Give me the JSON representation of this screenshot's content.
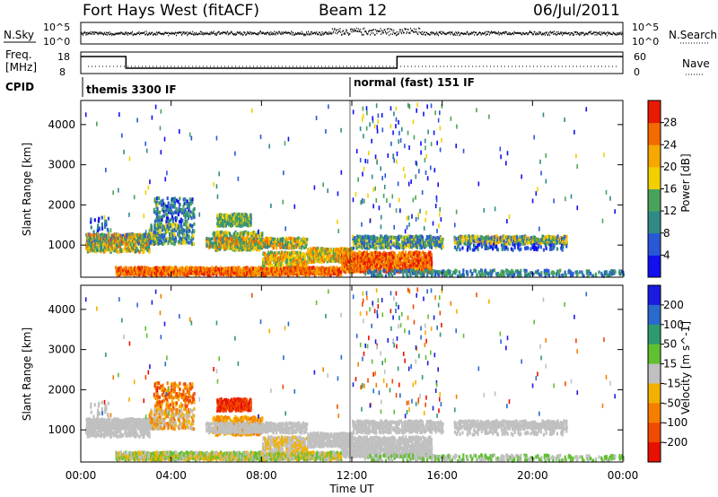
{
  "header": {
    "title": "Fort Hays West (fitACF)",
    "beam": "Beam 12",
    "date": "06/Jul/2011"
  },
  "left_labels": {
    "nsky": "N.Sky",
    "freq": "Freq.",
    "mhz": "[MHz]",
    "cpid": "CPID"
  },
  "right_labels": {
    "nsearch": "N.Search",
    "nave": "Nave"
  },
  "nsky_ticks": [
    "10^5",
    "10^0"
  ],
  "nsearch_ticks": [
    "10^5",
    "10^0"
  ],
  "freq_ticks": [
    "18",
    "8"
  ],
  "nave_ticks": [
    "60",
    "0"
  ],
  "cpid": [
    {
      "label": "themis 3300 IF",
      "start_hour": 0
    },
    {
      "label": "normal (fast) 151 IF",
      "start_hour": 12
    }
  ],
  "colors": {
    "power": [
      "#1010f0",
      "#2858d8",
      "#2f8a86",
      "#4aa35a",
      "#f2d000",
      "#f6a800",
      "#f36a00",
      "#e81a00"
    ],
    "velocity": [
      "#1a1ae0",
      "#2a6acf",
      "#2e9a70",
      "#60c030",
      "#c0c0c0",
      "#f2b100",
      "#f57e00",
      "#f04a00",
      "#e81000"
    ]
  },
  "chart_data": [
    {
      "type": "heatmap",
      "name_panel": "power",
      "ylabel": "Slant Range [km]",
      "xlabel": "",
      "yticks": [
        "1000",
        "2000",
        "3000",
        "4000"
      ],
      "ylim": [
        200,
        4600
      ],
      "xlim": [
        0,
        24
      ],
      "colorbar_label": "Power [dB]",
      "colorbar_ticks": [
        "4",
        "8",
        "12",
        "16",
        "20",
        "24",
        "28"
      ]
    },
    {
      "type": "heatmap",
      "name_panel": "velocity",
      "ylabel": "Slant Range [km]",
      "xlabel": "Time UT",
      "xticks": [
        "00:00",
        "04:00",
        "08:00",
        "12:00",
        "16:00",
        "20:00",
        "00:00"
      ],
      "yticks": [
        "1000",
        "2000",
        "3000",
        "4000"
      ],
      "ylim": [
        200,
        4600
      ],
      "xlim": [
        0,
        24
      ],
      "colorbar_label": "Velocity [m s^-1]",
      "colorbar_ticks": [
        "200",
        "100",
        "50",
        "15",
        "-15",
        "-50",
        "-100",
        "-200"
      ]
    }
  ],
  "frequency": {
    "segments": [
      {
        "from": 0,
        "to": 2,
        "value": "high"
      },
      {
        "from": 2,
        "to": 14,
        "value": "low"
      },
      {
        "from": 14,
        "to": 24,
        "value": "high"
      }
    ]
  }
}
